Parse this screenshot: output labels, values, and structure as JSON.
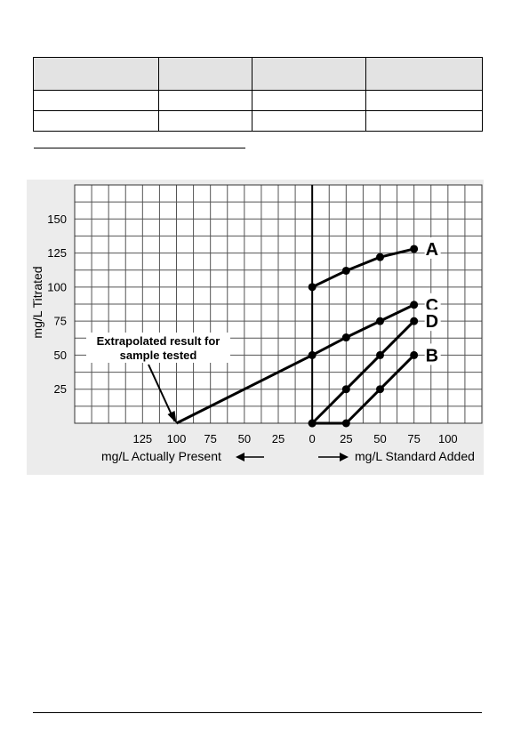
{
  "table": {
    "rows": [
      [
        "",
        "",
        "",
        ""
      ],
      [
        "",
        "",
        "",
        ""
      ],
      [
        "",
        "",
        "",
        ""
      ]
    ]
  },
  "chart_data": {
    "type": "line",
    "title": "",
    "ylabel": "mg/L Titrated",
    "xlabel_left": "mg/L Actually Present",
    "xlabel_right": "mg/L Standard Added",
    "y_ticks": [
      25,
      50,
      75,
      100,
      125,
      150
    ],
    "x_ticks_left": [
      125,
      100,
      75,
      50,
      25
    ],
    "x_ticks_right": [
      0,
      25,
      50,
      75,
      100
    ],
    "ylim": [
      0,
      175
    ],
    "xlim": [
      -175,
      125
    ],
    "grid": true,
    "series": [
      {
        "name": "A",
        "x": [
          0,
          25,
          50,
          75
        ],
        "y": [
          100,
          112,
          122,
          128
        ]
      },
      {
        "name": "C",
        "x": [
          0,
          25,
          50,
          75
        ],
        "y": [
          50,
          63,
          75,
          87
        ]
      },
      {
        "name": "D",
        "x": [
          0,
          25,
          50,
          75
        ],
        "y": [
          0,
          25,
          50,
          75
        ]
      },
      {
        "name": "B",
        "x": [
          0,
          25,
          50,
          75
        ],
        "y": [
          0,
          0,
          25,
          50
        ]
      }
    ],
    "extrapolation": {
      "x": [
        -100,
        0
      ],
      "y": [
        0,
        50
      ]
    },
    "annotation": {
      "lines": [
        "Extrapolated result for",
        "sample tested"
      ],
      "target": {
        "x": -100,
        "y": 0
      }
    }
  }
}
